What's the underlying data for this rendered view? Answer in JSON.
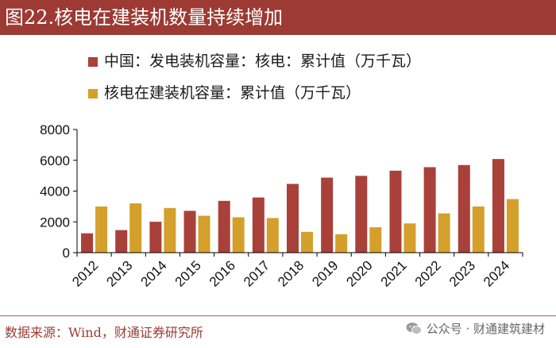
{
  "header": {
    "title": "图22.核电在建装机数量持续增加"
  },
  "colors": {
    "series1": "#a9403a",
    "series2": "#d4a02b",
    "title_bg": "#9c3a33",
    "source_text": "#9c3a33"
  },
  "chart_data": {
    "type": "bar",
    "title": "图22.核电在建装机数量持续增加",
    "categories": [
      "2012",
      "2013",
      "2014",
      "2015",
      "2016",
      "2017",
      "2018",
      "2019",
      "2020",
      "2021",
      "2022",
      "2023",
      "2024"
    ],
    "series": [
      {
        "name": "中国：发电装机容量：核电：累计值（万千瓦）",
        "values": [
          1257,
          1466,
          2008,
          2717,
          3364,
          3582,
          4466,
          4874,
          4989,
          5326,
          5553,
          5691,
          6083
        ]
      },
      {
        "name": "核电在建装机容量：累计值（万千瓦）",
        "values": [
          3000,
          3200,
          2900,
          2400,
          2300,
          2250,
          1350,
          1200,
          1650,
          1900,
          2550,
          3000,
          3480
        ]
      }
    ],
    "ylim": [
      0,
      8000
    ],
    "yticks": [
      0,
      2000,
      4000,
      6000,
      8000
    ],
    "ytick_labels": [
      "0",
      "2000",
      "4000",
      "6000",
      "8000"
    ],
    "xlabel": "",
    "ylabel": "",
    "legend_position": "top-left",
    "grid": false
  },
  "footer": {
    "source": "数据来源：Wind，财通证券研究所",
    "watermark": "公众号 · 财通建筑建材",
    "watermark_icon": "wechat-icon"
  }
}
